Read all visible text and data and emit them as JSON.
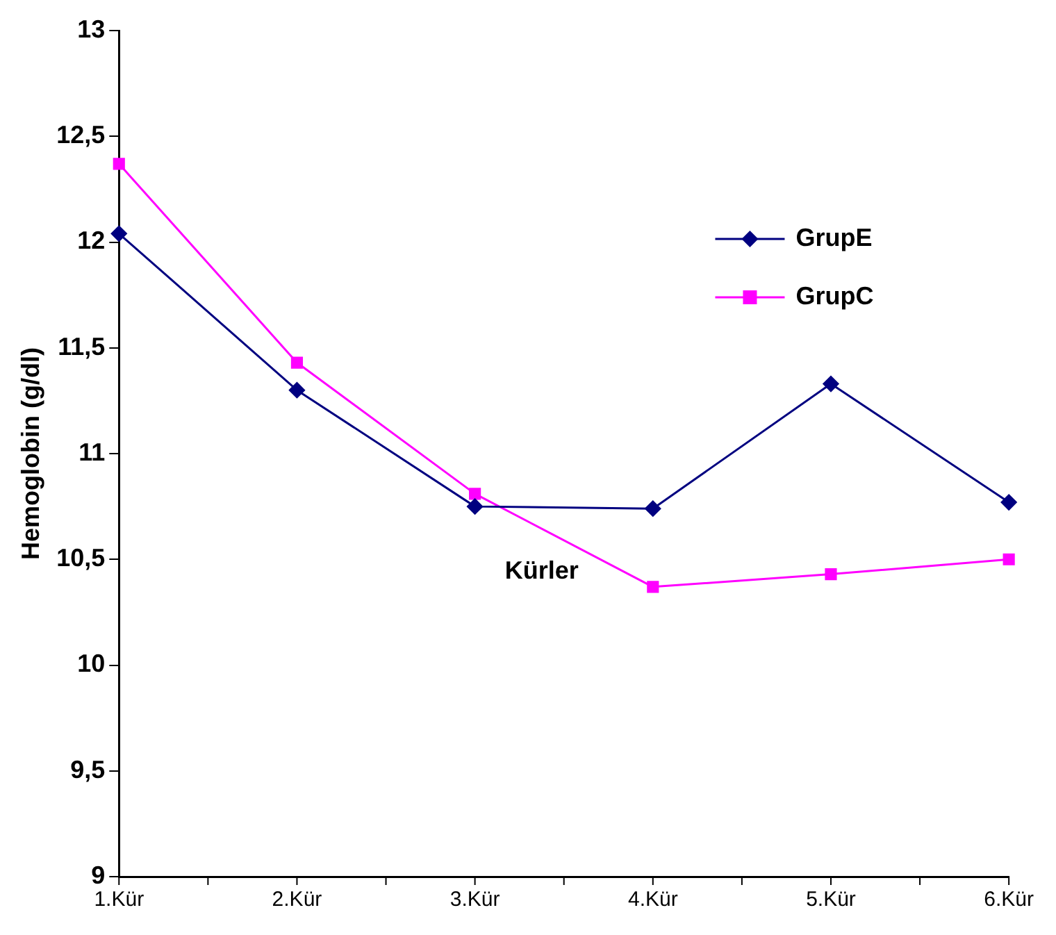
{
  "chart_data": {
    "type": "line",
    "xlabel": "Kürler",
    "ylabel": "Hemoglobin (g/dl)",
    "categories": [
      "1.Kür",
      "2.Kür",
      "3.Kür",
      "4.Kür",
      "5.Kür",
      "6.Kür"
    ],
    "series": [
      {
        "name": "GrupE",
        "color": "#000080",
        "marker": "diamond",
        "values": [
          12.04,
          11.3,
          10.75,
          10.74,
          11.33,
          10.77
        ]
      },
      {
        "name": "GrupC",
        "color": "#ff00ff",
        "marker": "square",
        "values": [
          12.37,
          11.43,
          10.81,
          10.37,
          10.43,
          10.5
        ]
      }
    ],
    "ylim": [
      9,
      13
    ],
    "yticks": [
      {
        "value": 9,
        "label": "9"
      },
      {
        "value": 9.5,
        "label": "9,5"
      },
      {
        "value": 10,
        "label": "10"
      },
      {
        "value": 10.5,
        "label": "10,5"
      },
      {
        "value": 11,
        "label": "11"
      },
      {
        "value": 11.5,
        "label": "11,5"
      },
      {
        "value": 12,
        "label": "12"
      },
      {
        "value": 12.5,
        "label": "12,5"
      },
      {
        "value": 13,
        "label": "13"
      }
    ],
    "grid": false,
    "legend": "top right"
  }
}
